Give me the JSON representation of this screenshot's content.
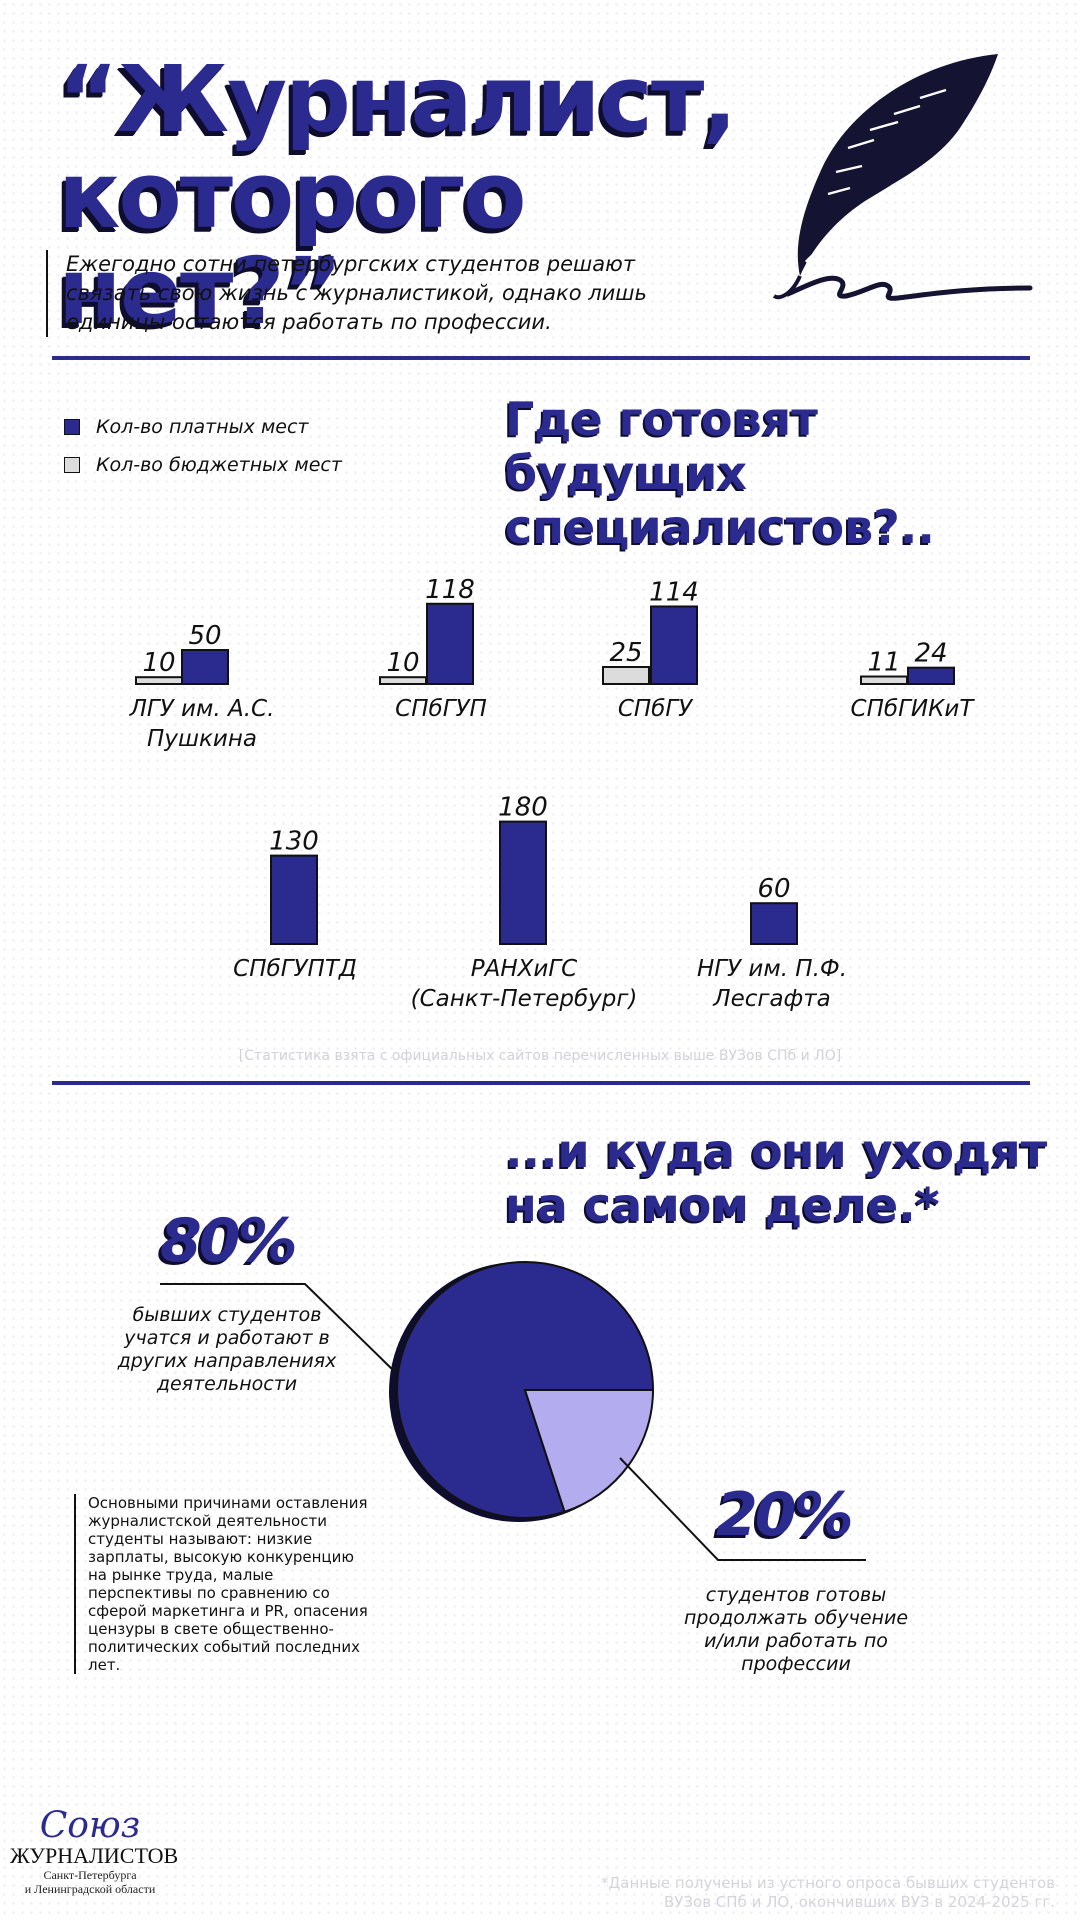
{
  "header": {
    "title_line1": "“Журналист,",
    "title_line2": "которого нет?”",
    "intro": "Ежегодно сотни петербургских студентов решают связать свою жизнь с журналистикой, однако лишь единицы остаются работать по профессии."
  },
  "section1": {
    "heading_line1": "Где готовят будущих",
    "heading_line2": "специалистов?..",
    "legend": [
      {
        "label": "Кол-во платных мест",
        "color": "#2b2a8f"
      },
      {
        "label": "Кол-во бюджетных мест",
        "color": "#dcdcdc"
      }
    ],
    "source_note": "[Статистика взята с официальных сайтов перечисленных выше ВУЗов СПб и ЛО]"
  },
  "chart_data": [
    {
      "type": "bar",
      "series": [
        {
          "name": "Кол-во бюджетных мест",
          "color": "#dcdcdc"
        },
        {
          "name": "Кол-во платных мест",
          "color": "#2b2a8f"
        }
      ],
      "groups": [
        {
          "name": [
            "ЛГУ им. А.С.",
            "Пушкина"
          ],
          "values": [
            10,
            50
          ]
        },
        {
          "name": [
            "СПбГУП"
          ],
          "values": [
            10,
            118
          ]
        },
        {
          "name": [
            "СПбГУ"
          ],
          "values": [
            25,
            114
          ]
        },
        {
          "name": [
            "СПбГИКиТ"
          ],
          "values": [
            11,
            24
          ]
        },
        {
          "name": [
            "СПбГУПТД"
          ],
          "values": [
            null,
            130
          ]
        },
        {
          "name": [
            "РАНХиГС",
            "(Санкт-Петербург)"
          ],
          "values": [
            null,
            180
          ]
        },
        {
          "name": [
            "НГУ им. П.Ф.",
            "Лесгафта"
          ],
          "values": [
            null,
            60
          ]
        }
      ]
    },
    {
      "type": "pie",
      "slices": [
        {
          "label": "бывших студентов учатся и работают в других направлениях деятельности",
          "value": 80,
          "color": "#2b2a8f"
        },
        {
          "label": "студентов готовы продолжать обучение и/или работать по профессии",
          "value": 20,
          "color": "#b3acee"
        }
      ]
    }
  ],
  "section2": {
    "heading_line1": "...и куда они уходят",
    "heading_line2": "на самом деле.*",
    "pct_big": "80%",
    "pct_big_desc": "бывших студентов учатся и работают в других направлениях деятельности",
    "pct_small": "20%",
    "pct_small_desc": "студентов готовы продолжать обучение и/или работать по профессии",
    "reasons": "Основными причинами оставления журналистской деятельности студенты называют: низкие зарплаты, высокую конкуренцию на рынке труда, малые перспективы по сравнению со сферой маркетинга и PR, опасения цензуры в свете общественно-политических событий последних лет."
  },
  "footer": {
    "logo_script": "Союз",
    "logo_main": "ЖУРНАЛИСТОВ",
    "logo_sub1": "Санкт-Петербурга",
    "logo_sub2": "и Ленинградской области",
    "footnote": "*Данные получены из устного опроса бывших студентов ВУЗов СПб и ЛО, окончивших ВУЗ в 2024-2025 гг."
  }
}
